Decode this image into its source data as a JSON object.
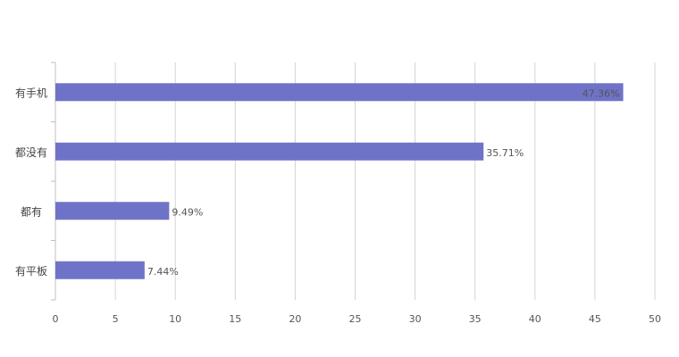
{
  "chart_data": {
    "type": "bar",
    "orientation": "horizontal",
    "categories": [
      "有手机",
      "都没有",
      "都有",
      "有平板"
    ],
    "values": [
      47.36,
      35.71,
      9.49,
      7.44
    ],
    "data_labels": [
      "47.36%",
      "35.71%",
      "9.49%",
      "7.44%"
    ],
    "xticks": [
      "0",
      "5",
      "10",
      "15",
      "20",
      "25",
      "30",
      "35",
      "40",
      "45",
      "50"
    ],
    "xlim": [
      0,
      50
    ],
    "grid": true,
    "legend": "none",
    "colors": {
      "bar": "#6f73c8",
      "grid": "#d4d4d4",
      "axis": "#bfbfbf"
    }
  }
}
